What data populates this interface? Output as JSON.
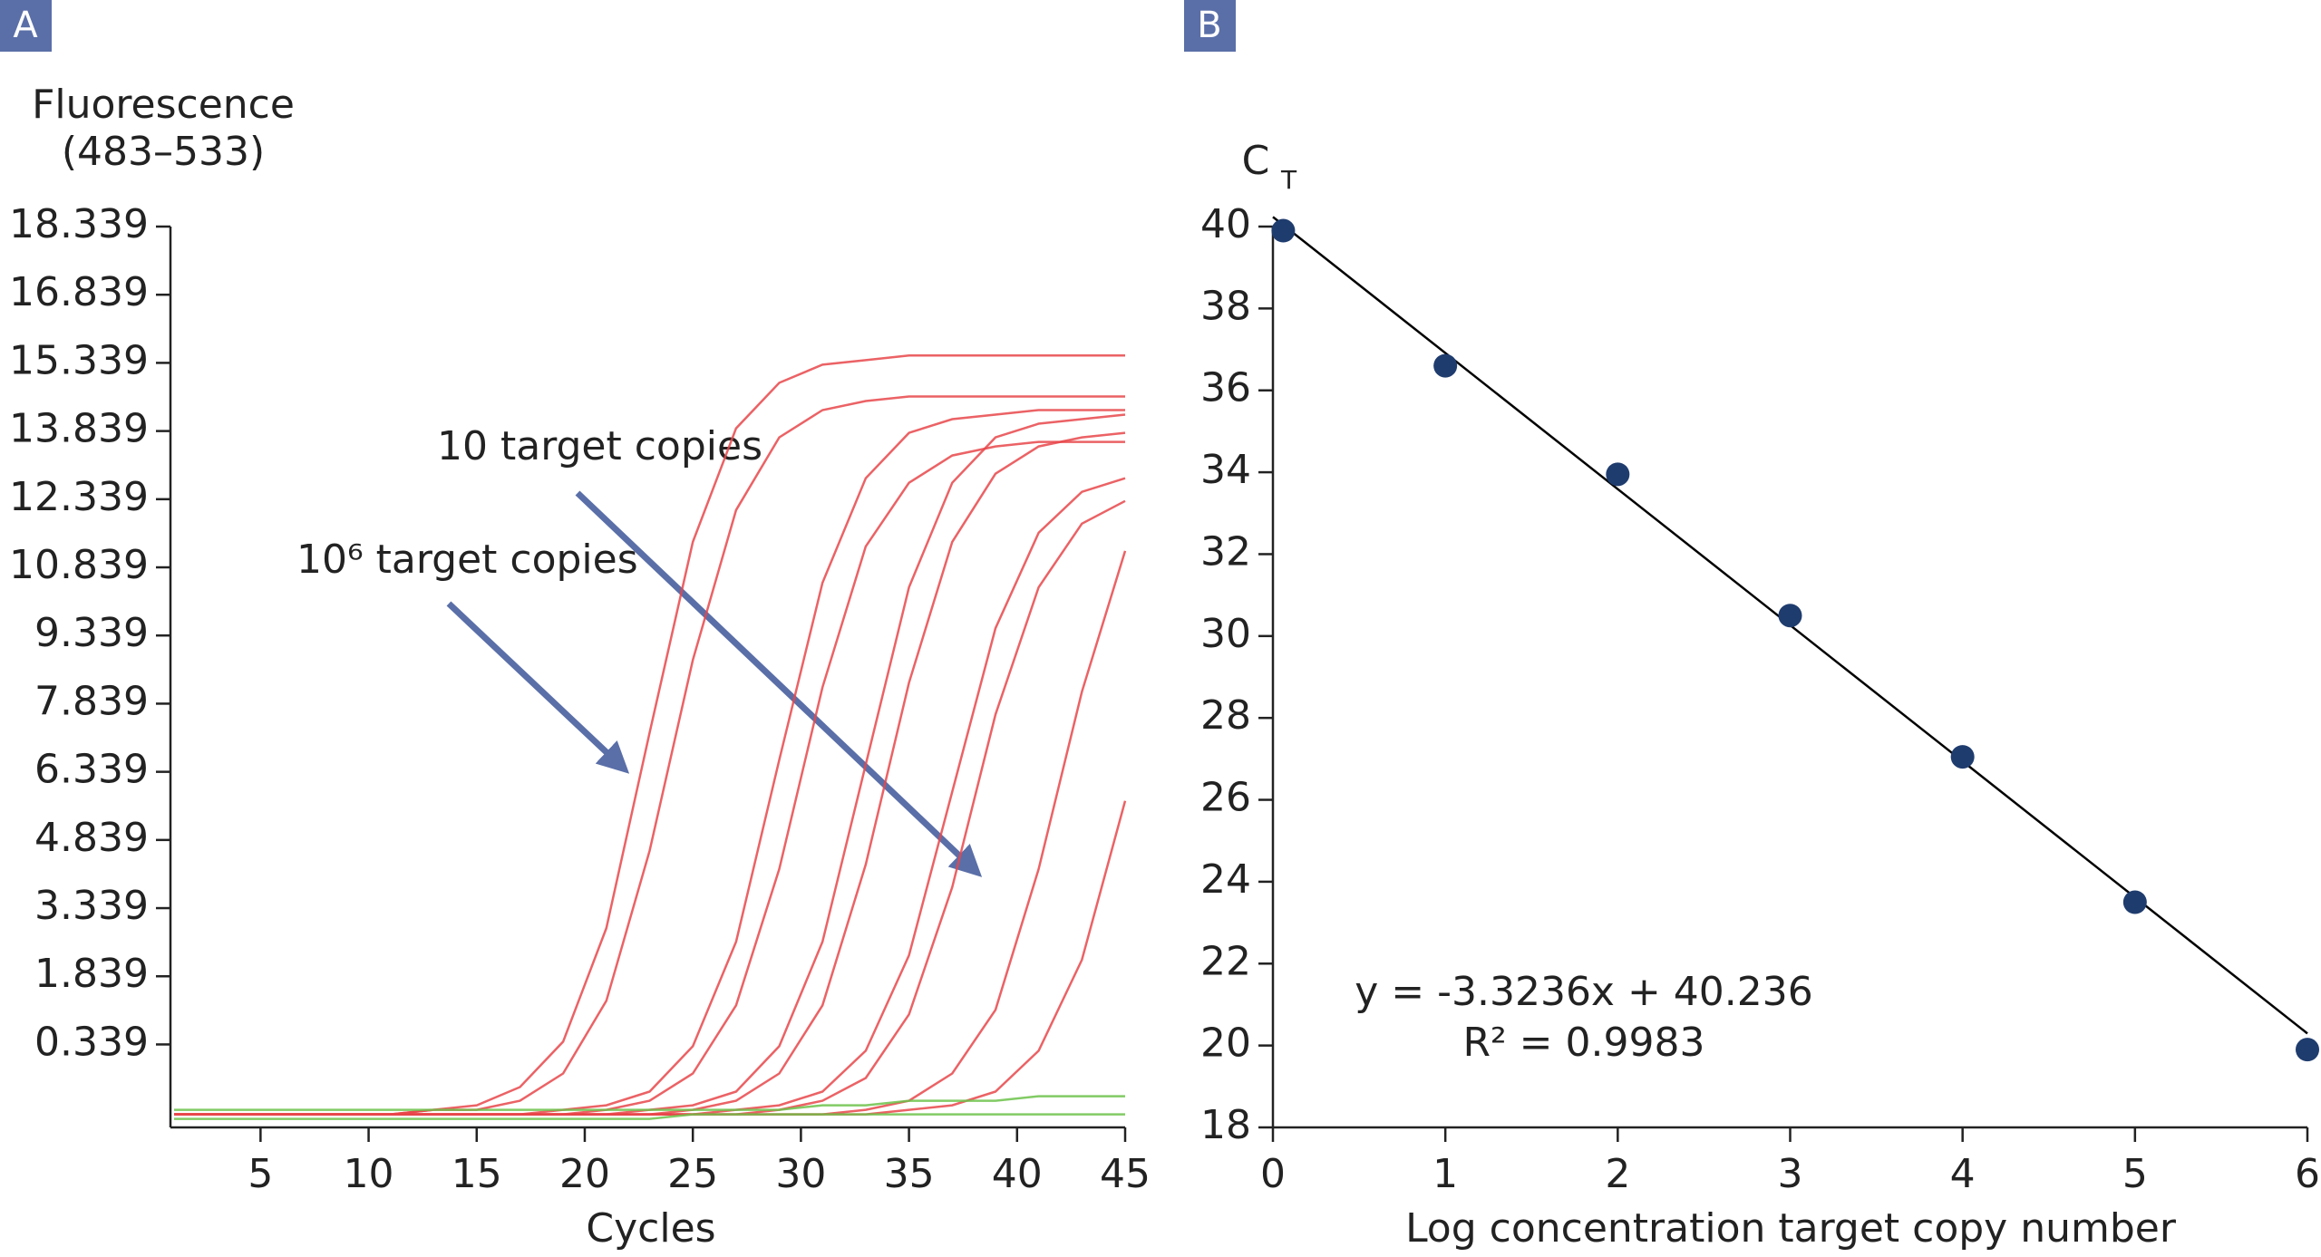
{
  "chart_data": [
    {
      "type": "line",
      "panel": "A",
      "ylabel": [
        "Fluorescence",
        "(483–533)"
      ],
      "xlabel": "Cycles",
      "x": [
        1,
        3,
        5,
        7,
        9,
        11,
        13,
        15,
        17,
        19,
        21,
        23,
        25,
        27,
        29,
        31,
        33,
        35,
        37,
        39,
        41,
        43,
        45
      ],
      "xlim": [
        1,
        45
      ],
      "xticks": [
        5,
        10,
        15,
        20,
        25,
        30,
        35,
        40,
        45
      ],
      "ylim": [
        -1.487,
        18.339
      ],
      "yticks": [
        0.339,
        1.839,
        3.339,
        4.839,
        6.339,
        7.839,
        9.339,
        10.839,
        12.339,
        13.839,
        15.339,
        16.839,
        18.339
      ],
      "series": [
        {
          "color": "#e8474a",
          "values": [
            -1.2,
            -1.2,
            -1.2,
            -1.2,
            -1.2,
            -1.2,
            -1.1,
            -1.0,
            -0.6,
            0.4,
            2.9,
            7.2,
            11.4,
            13.9,
            14.9,
            15.3,
            15.4,
            15.5,
            15.5,
            15.5,
            15.5,
            15.5,
            15.5
          ]
        },
        {
          "color": "#e8474a",
          "values": [
            -1.2,
            -1.2,
            -1.2,
            -1.2,
            -1.2,
            -1.2,
            -1.1,
            -1.1,
            -0.9,
            -0.3,
            1.3,
            4.6,
            8.8,
            12.1,
            13.7,
            14.3,
            14.5,
            14.6,
            14.6,
            14.6,
            14.6,
            14.6,
            14.6
          ]
        },
        {
          "color": "#e8474a",
          "values": [
            -1.2,
            -1.2,
            -1.2,
            -1.2,
            -1.2,
            -1.2,
            -1.2,
            -1.2,
            -1.2,
            -1.1,
            -1.0,
            -0.7,
            0.3,
            2.6,
            6.6,
            10.5,
            12.8,
            13.8,
            14.1,
            14.2,
            14.3,
            14.3,
            14.3
          ]
        },
        {
          "color": "#e8474a",
          "values": [
            -1.2,
            -1.2,
            -1.2,
            -1.2,
            -1.2,
            -1.2,
            -1.2,
            -1.2,
            -1.2,
            -1.2,
            -1.1,
            -0.9,
            -0.3,
            1.2,
            4.2,
            8.2,
            11.3,
            12.7,
            13.3,
            13.5,
            13.6,
            13.6,
            13.6
          ]
        },
        {
          "color": "#e8474a",
          "values": [
            -1.2,
            -1.2,
            -1.2,
            -1.2,
            -1.2,
            -1.2,
            -1.2,
            -1.2,
            -1.2,
            -1.2,
            -1.2,
            -1.1,
            -1.0,
            -0.7,
            0.3,
            2.6,
            6.5,
            10.4,
            12.7,
            13.7,
            14.0,
            14.1,
            14.2
          ]
        },
        {
          "color": "#e8474a",
          "values": [
            -1.2,
            -1.2,
            -1.2,
            -1.2,
            -1.2,
            -1.2,
            -1.2,
            -1.2,
            -1.2,
            -1.2,
            -1.2,
            -1.2,
            -1.1,
            -0.9,
            -0.3,
            1.2,
            4.3,
            8.3,
            11.4,
            12.9,
            13.5,
            13.7,
            13.8
          ]
        },
        {
          "color": "#e8474a",
          "values": [
            -1.2,
            -1.2,
            -1.2,
            -1.2,
            -1.2,
            -1.2,
            -1.2,
            -1.2,
            -1.2,
            -1.2,
            -1.2,
            -1.2,
            -1.2,
            -1.1,
            -1.0,
            -0.7,
            0.2,
            2.3,
            5.9,
            9.5,
            11.6,
            12.5,
            12.8
          ]
        },
        {
          "color": "#e8474a",
          "values": [
            -1.2,
            -1.2,
            -1.2,
            -1.2,
            -1.2,
            -1.2,
            -1.2,
            -1.2,
            -1.2,
            -1.2,
            -1.2,
            -1.2,
            -1.2,
            -1.2,
            -1.1,
            -0.9,
            -0.4,
            1.0,
            3.8,
            7.6,
            10.4,
            11.8,
            12.3
          ]
        },
        {
          "color": "#e8474a",
          "values": [
            -1.2,
            -1.2,
            -1.2,
            -1.2,
            -1.2,
            -1.2,
            -1.2,
            -1.2,
            -1.2,
            -1.2,
            -1.2,
            -1.2,
            -1.2,
            -1.2,
            -1.2,
            -1.2,
            -1.1,
            -0.9,
            -0.3,
            1.1,
            4.2,
            8.1,
            11.2
          ]
        },
        {
          "color": "#e8474a",
          "values": [
            -1.2,
            -1.2,
            -1.2,
            -1.2,
            -1.2,
            -1.2,
            -1.2,
            -1.2,
            -1.2,
            -1.2,
            -1.2,
            -1.2,
            -1.2,
            -1.2,
            -1.2,
            -1.2,
            -1.2,
            -1.1,
            -1.0,
            -0.7,
            0.2,
            2.2,
            5.7
          ]
        },
        {
          "color": "#6cc24a",
          "values": [
            -1.1,
            -1.1,
            -1.1,
            -1.1,
            -1.1,
            -1.1,
            -1.1,
            -1.1,
            -1.1,
            -1.1,
            -1.1,
            -1.1,
            -1.1,
            -1.1,
            -1.1,
            -1.0,
            -1.0,
            -0.9,
            -0.9,
            -0.9,
            -0.8,
            -0.8,
            -0.8
          ]
        },
        {
          "color": "#6cc24a",
          "values": [
            -1.3,
            -1.3,
            -1.3,
            -1.3,
            -1.3,
            -1.3,
            -1.3,
            -1.3,
            -1.3,
            -1.3,
            -1.3,
            -1.3,
            -1.2,
            -1.2,
            -1.2,
            -1.2,
            -1.2,
            -1.2,
            -1.2,
            -1.2,
            -1.2,
            -1.2,
            -1.2
          ]
        }
      ],
      "annotations": [
        {
          "text": "10 target copies"
        },
        {
          "text": "10⁶ target copies"
        }
      ]
    },
    {
      "type": "scatter",
      "panel": "B",
      "ylabel": "C",
      "ylabel_subscript": "T",
      "xlabel": "Log concentration target copy number",
      "x": [
        0.06,
        1,
        2,
        3,
        4,
        5,
        6
      ],
      "values": [
        39.9,
        36.6,
        33.95,
        30.5,
        27.05,
        23.5,
        19.9
      ],
      "color": "#1f3c6e",
      "xlim": [
        0,
        6
      ],
      "xticks": [
        0,
        1,
        2,
        3,
        4,
        5,
        6
      ],
      "ylim": [
        18,
        40
      ],
      "yticks": [
        18,
        20,
        22,
        24,
        26,
        28,
        30,
        32,
        34,
        36,
        38,
        40
      ],
      "trendline": {
        "slope": -3.3236,
        "intercept": 40.236,
        "color": "#000000"
      },
      "annotations": [
        {
          "text": "y = -3.3236x + 40.236"
        },
        {
          "text": "R² = 0.9983"
        }
      ]
    }
  ]
}
